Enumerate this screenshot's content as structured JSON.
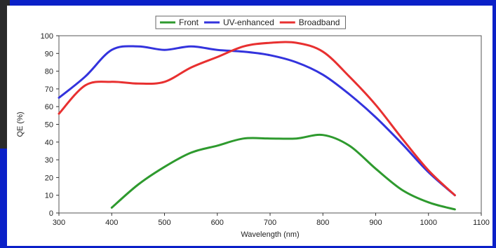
{
  "chart_data": {
    "type": "line",
    "title": "",
    "xlabel": "Wavelength (nm)",
    "ylabel": "QE (%)",
    "xlim": [
      300,
      1100
    ],
    "ylim": [
      0,
      100
    ],
    "x_ticks": [
      300,
      400,
      500,
      600,
      700,
      800,
      900,
      1000,
      1100
    ],
    "y_ticks": [
      0,
      10,
      20,
      30,
      40,
      50,
      60,
      70,
      80,
      90,
      100
    ],
    "grid": "dashed",
    "legend_position": "top-center",
    "series": [
      {
        "name": "Front",
        "color": "#2e9a2e",
        "points": [
          [
            400,
            3
          ],
          [
            450,
            16
          ],
          [
            500,
            26
          ],
          [
            550,
            34
          ],
          [
            600,
            38
          ],
          [
            650,
            42
          ],
          [
            700,
            42
          ],
          [
            750,
            42
          ],
          [
            800,
            44
          ],
          [
            850,
            38
          ],
          [
            900,
            25
          ],
          [
            950,
            13
          ],
          [
            1000,
            6
          ],
          [
            1050,
            2
          ]
        ]
      },
      {
        "name": "UV-enhanced",
        "color": "#3333dd",
        "points": [
          [
            300,
            65
          ],
          [
            350,
            77
          ],
          [
            400,
            92
          ],
          [
            450,
            94
          ],
          [
            500,
            92
          ],
          [
            550,
            94
          ],
          [
            600,
            92
          ],
          [
            650,
            91
          ],
          [
            700,
            89
          ],
          [
            750,
            85
          ],
          [
            800,
            78
          ],
          [
            850,
            67
          ],
          [
            900,
            54
          ],
          [
            950,
            39
          ],
          [
            1000,
            23
          ],
          [
            1050,
            10
          ]
        ]
      },
      {
        "name": "Broadband",
        "color": "#e83030",
        "points": [
          [
            300,
            56
          ],
          [
            350,
            72
          ],
          [
            400,
            74
          ],
          [
            450,
            73
          ],
          [
            500,
            74
          ],
          [
            550,
            82
          ],
          [
            600,
            88
          ],
          [
            650,
            94
          ],
          [
            700,
            96
          ],
          [
            750,
            96
          ],
          [
            800,
            91
          ],
          [
            850,
            77
          ],
          [
            900,
            61
          ],
          [
            950,
            42
          ],
          [
            1000,
            24
          ],
          [
            1050,
            10
          ]
        ]
      }
    ]
  }
}
